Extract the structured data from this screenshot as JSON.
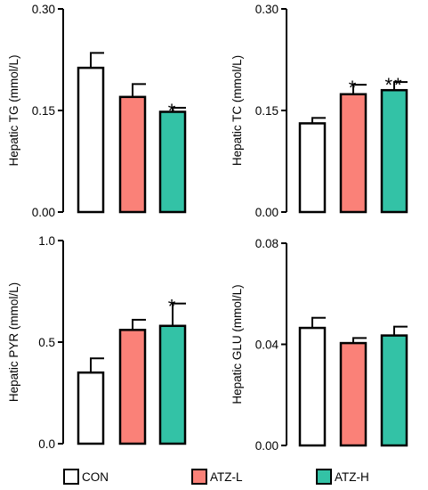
{
  "colors": {
    "CON": "#ffffff",
    "ATZ-L": "#fa8178",
    "ATZ-H": "#33c2a6",
    "stroke": "#000000"
  },
  "legend": {
    "items": [
      {
        "label": "CON",
        "color": "#ffffff"
      },
      {
        "label": "ATZ-L",
        "color": "#fa8178"
      },
      {
        "label": "ATZ-H",
        "color": "#33c2a6"
      }
    ]
  },
  "chart_data": [
    {
      "type": "bar",
      "ylabel": "Hepatic TG (mmol/L)",
      "categories": [
        "CON",
        "ATZ-L",
        "ATZ-H"
      ],
      "values": [
        0.213,
        0.17,
        0.148
      ],
      "errors": [
        0.022,
        0.019,
        0.006
      ],
      "significance": [
        "",
        "",
        "*"
      ],
      "ylim": [
        0,
        0.3
      ],
      "yticks": [
        0,
        0.15,
        0.3
      ],
      "yticklabels": [
        "0.00",
        "0.15",
        "0.30"
      ]
    },
    {
      "type": "bar",
      "ylabel": "Hepatic TC (mmol/L)",
      "categories": [
        "CON",
        "ATZ-L",
        "ATZ-H"
      ],
      "values": [
        0.131,
        0.174,
        0.18
      ],
      "errors": [
        0.008,
        0.014,
        0.012
      ],
      "significance": [
        "",
        "*",
        "**"
      ],
      "ylim": [
        0,
        0.3
      ],
      "yticks": [
        0,
        0.15,
        0.3
      ],
      "yticklabels": [
        "0.00",
        "0.15",
        "0.30"
      ]
    },
    {
      "type": "bar",
      "ylabel": "Hepatic PYR (mmol/L)",
      "categories": [
        "CON",
        "ATZ-L",
        "ATZ-H"
      ],
      "values": [
        0.35,
        0.56,
        0.58
      ],
      "errors": [
        0.07,
        0.05,
        0.11
      ],
      "significance": [
        "",
        "",
        "*"
      ],
      "ylim": [
        0,
        1.0
      ],
      "yticks": [
        0,
        0.5,
        1.0
      ],
      "yticklabels": [
        "0.0",
        "0.5",
        "1.0"
      ]
    },
    {
      "type": "bar",
      "ylabel": "Hepatic GLU (mmol/L)",
      "categories": [
        "CON",
        "ATZ-L",
        "ATZ-H"
      ],
      "values": [
        0.0465,
        0.0405,
        0.0435
      ],
      "errors": [
        0.004,
        0.002,
        0.0035
      ],
      "significance": [
        "",
        "",
        ""
      ],
      "ylim": [
        0,
        0.08
      ],
      "yticks": [
        0,
        0.04,
        0.08
      ],
      "yticklabels": [
        "0.00",
        "0.04",
        "0.08"
      ]
    }
  ]
}
